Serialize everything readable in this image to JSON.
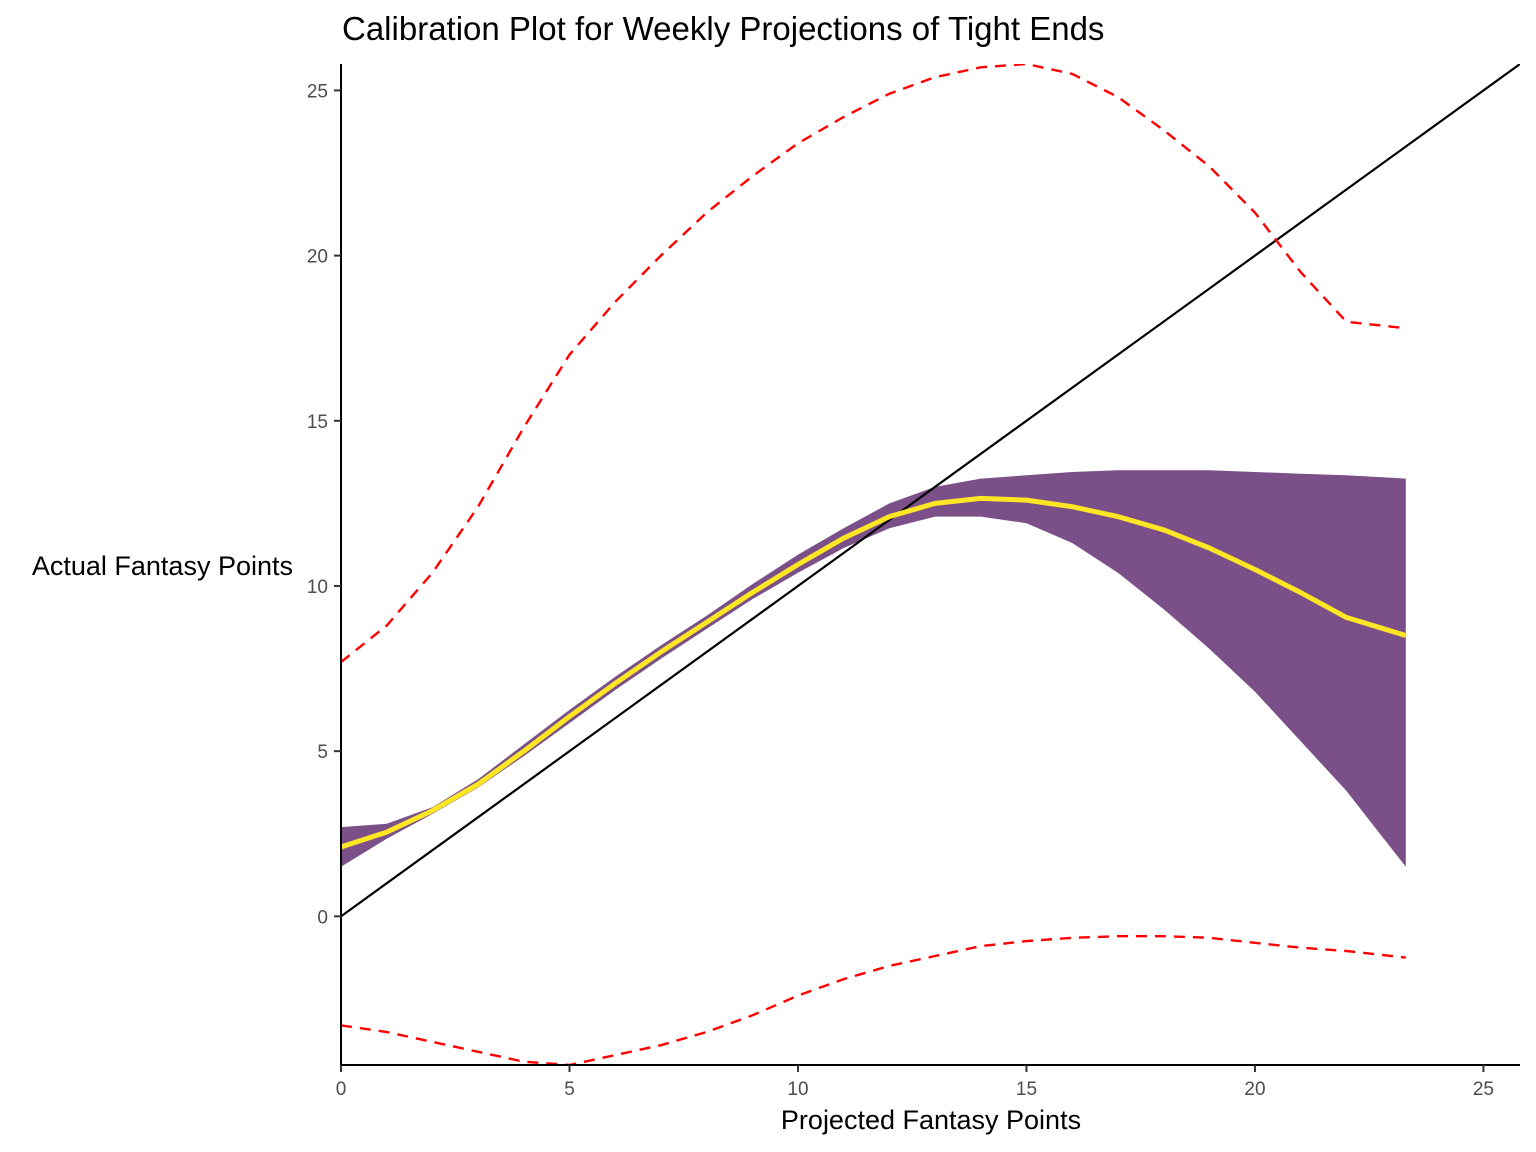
{
  "chart_data": {
    "type": "line",
    "title": "Calibration Plot for Weekly Projections of Tight Ends",
    "xlabel": "Projected Fantasy Points",
    "ylabel": "Actual Fantasy Points",
    "xlim": [
      0,
      25.8
    ],
    "ylim": [
      -4.5,
      25.8
    ],
    "xticks": [
      0,
      5,
      10,
      15,
      20,
      25
    ],
    "yticks": [
      0,
      5,
      10,
      15,
      20,
      25
    ],
    "grid": false,
    "legend": "none",
    "series": [
      {
        "role": "reference-line",
        "style": "solid",
        "color": "#000000",
        "x": [
          0,
          25.8
        ],
        "y": [
          0,
          25.8
        ]
      },
      {
        "role": "confidence-band",
        "style": "filled-area",
        "color": "#7b4f87",
        "x": [
          0,
          1,
          2,
          3,
          4,
          5,
          6,
          7,
          8,
          9,
          10,
          11,
          12,
          13,
          14,
          15,
          16,
          17,
          18,
          19,
          20,
          21,
          22,
          23.3
        ],
        "y_lower": [
          1.5,
          2.35,
          3.1,
          3.9,
          4.85,
          5.85,
          6.85,
          7.8,
          8.7,
          9.6,
          10.4,
          11.15,
          11.75,
          12.1,
          12.1,
          11.9,
          11.3,
          10.4,
          9.3,
          8.1,
          6.8,
          5.3,
          3.8,
          1.5
        ],
        "y_upper": [
          2.7,
          2.8,
          3.3,
          4.15,
          5.2,
          6.25,
          7.25,
          8.2,
          9.1,
          10.05,
          10.95,
          11.75,
          12.5,
          13.0,
          13.25,
          13.35,
          13.45,
          13.5,
          13.5,
          13.5,
          13.45,
          13.4,
          13.35,
          13.25
        ]
      },
      {
        "role": "smoothed-fit",
        "style": "solid",
        "color": "#fde725",
        "x": [
          0,
          1,
          2,
          3,
          4,
          5,
          6,
          7,
          8,
          9,
          10,
          11,
          12,
          13,
          14,
          15,
          16,
          17,
          18,
          19,
          20,
          21,
          22,
          23.3
        ],
        "y": [
          2.1,
          2.55,
          3.2,
          4.0,
          5.0,
          6.05,
          7.05,
          8.0,
          8.9,
          9.8,
          10.65,
          11.45,
          12.1,
          12.5,
          12.65,
          12.6,
          12.4,
          12.1,
          11.7,
          11.15,
          10.5,
          9.8,
          9.05,
          8.5
        ]
      },
      {
        "role": "upper-prediction-bound",
        "style": "dashed",
        "color": "#ff0000",
        "x": [
          0,
          1,
          2,
          3,
          4,
          5,
          6,
          7,
          8,
          9,
          10,
          11,
          12,
          13,
          14,
          15,
          16,
          17,
          18,
          19,
          20,
          21,
          22,
          23.3
        ],
        "y": [
          7.7,
          8.8,
          10.4,
          12.4,
          14.8,
          17.0,
          18.6,
          20.0,
          21.3,
          22.4,
          23.4,
          24.2,
          24.9,
          25.4,
          25.7,
          25.8,
          25.5,
          24.8,
          23.8,
          22.7,
          21.3,
          19.5,
          18.0,
          17.8
        ]
      },
      {
        "role": "lower-prediction-bound",
        "style": "dashed",
        "color": "#ff0000",
        "x": [
          0,
          1,
          2,
          3,
          4,
          5,
          6,
          7,
          8,
          9,
          10,
          11,
          12,
          13,
          14,
          15,
          16,
          17,
          18,
          19,
          20,
          21,
          22,
          23.3
        ],
        "y": [
          -3.3,
          -3.5,
          -3.8,
          -4.1,
          -4.4,
          -4.5,
          -4.2,
          -3.9,
          -3.5,
          -3.0,
          -2.4,
          -1.9,
          -1.5,
          -1.2,
          -0.9,
          -0.75,
          -0.65,
          -0.6,
          -0.6,
          -0.65,
          -0.8,
          -0.95,
          -1.05,
          -1.25
        ]
      }
    ]
  }
}
